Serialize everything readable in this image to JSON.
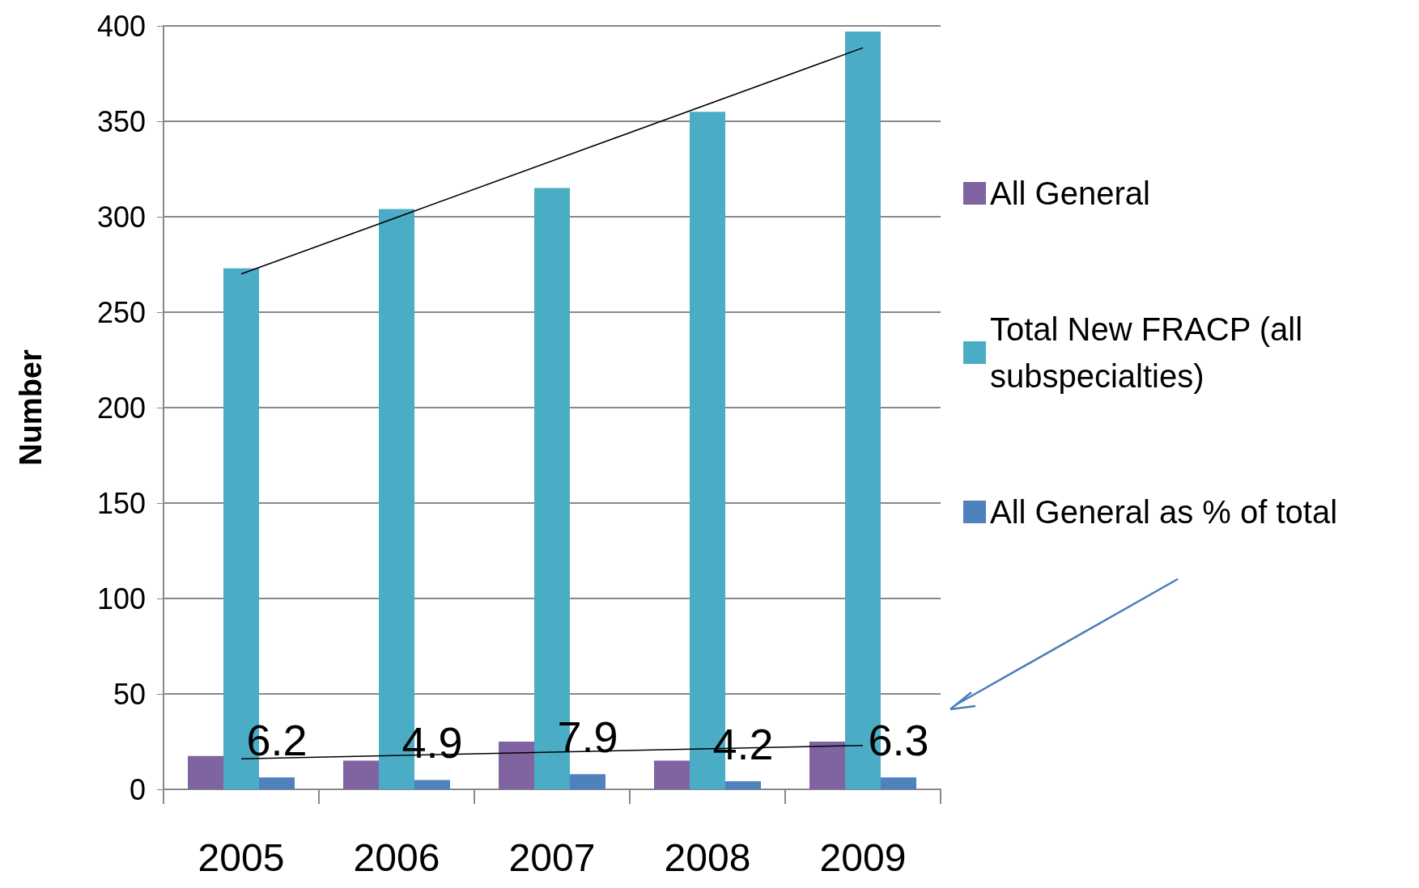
{
  "chart_data": {
    "type": "bar",
    "ylabel": "Number",
    "categories": [
      "2005",
      "2006",
      "2007",
      "2008",
      "2009"
    ],
    "series": [
      {
        "name": "All General",
        "color": "#8064a2",
        "values": [
          17.5,
          15,
          25,
          15,
          25
        ]
      },
      {
        "name": "Total New FRACP (all subspecialties)",
        "color": "#4bacc6",
        "values": [
          273,
          304,
          315,
          355,
          397
        ]
      },
      {
        "name": "All General as % of total",
        "color": "#4f81bd",
        "values": [
          6.2,
          4.9,
          7.9,
          4.2,
          6.3
        ],
        "value_labels": [
          "6.2",
          "4.9",
          "7.9",
          "4.2",
          "6.3"
        ]
      },
      {
        "type": "line",
        "color": "#000000",
        "values": [
          270,
          null,
          null,
          null,
          388.5
        ],
        "marker": "none",
        "line_style": "solid"
      },
      {
        "type": "line",
        "color": "#000000",
        "values": [
          16,
          null,
          null,
          null,
          23
        ],
        "marker": "none",
        "line_style": "solid"
      }
    ],
    "ylim": [
      0,
      400
    ],
    "yticks": [
      0,
      50,
      100,
      150,
      200,
      250,
      300,
      350,
      400
    ],
    "grid": "y",
    "legend": "right"
  }
}
